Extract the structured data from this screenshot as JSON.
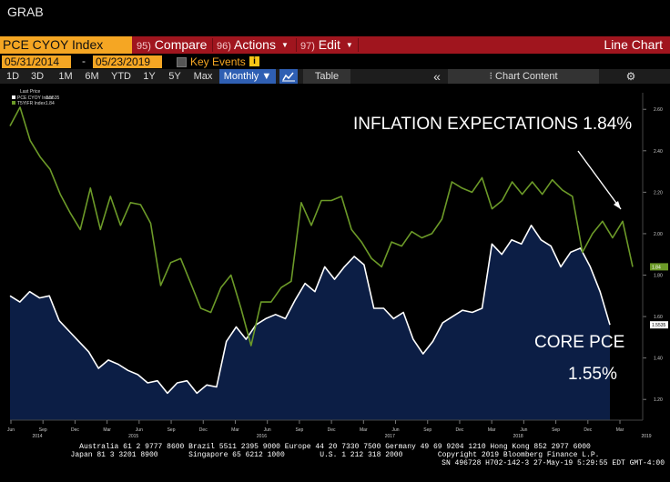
{
  "window": {
    "title": "GRAB"
  },
  "toolbar": {
    "ticker": "PCE CYOY Index",
    "menus": [
      {
        "num": "95)",
        "label": "Compare"
      },
      {
        "num": "96)",
        "label": "Actions"
      },
      {
        "num": "97)",
        "label": "Edit"
      }
    ],
    "chart_type": "Line Chart"
  },
  "dates": {
    "start": "05/31/2014",
    "dash": "-",
    "end": "05/23/2019",
    "key_events": "Key Events",
    "info": "i"
  },
  "periods": [
    "1D",
    "3D",
    "1M",
    "6M",
    "YTD",
    "1Y",
    "5Y",
    "Max"
  ],
  "frequency": "Monthly",
  "table_label": "Table",
  "collapse_glyph": "«",
  "chart_content": "Chart Content",
  "settings_glyph": "⚙",
  "colors": {
    "pce": "#ffffff",
    "tsy": "#6c9a28",
    "fill": "#0c1e45",
    "toolbar_red": "#a0151e",
    "ticker_orange": "#f5a623"
  },
  "chart_data": {
    "type": "line",
    "legend": {
      "title": "Last Price",
      "entries": [
        {
          "name": "PCE CYOY Index",
          "value": "1.5535"
        },
        {
          "name": "T5YIFR Index",
          "value": "1.84"
        }
      ]
    },
    "x_ticks": [
      {
        "label": "Jun",
        "year": "2014"
      },
      {
        "label": "Sep",
        "year": ""
      },
      {
        "label": "Dec",
        "year": ""
      },
      {
        "label": "Mar",
        "year": "2015"
      },
      {
        "label": "Jun",
        "year": ""
      },
      {
        "label": "Sep",
        "year": ""
      },
      {
        "label": "Dec",
        "year": ""
      },
      {
        "label": "Mar",
        "year": "2016"
      },
      {
        "label": "Jun",
        "year": ""
      },
      {
        "label": "Sep",
        "year": ""
      },
      {
        "label": "Dec",
        "year": ""
      },
      {
        "label": "Mar",
        "year": "2017"
      },
      {
        "label": "Jun",
        "year": ""
      },
      {
        "label": "Sep",
        "year": ""
      },
      {
        "label": "Dec",
        "year": ""
      },
      {
        "label": "Mar",
        "year": "2018"
      },
      {
        "label": "Jun",
        "year": ""
      },
      {
        "label": "Sep",
        "year": ""
      },
      {
        "label": "Dec",
        "year": ""
      },
      {
        "label": "Mar",
        "year": "2019"
      }
    ],
    "y_ticks": [
      "2.60",
      "2.40",
      "2.20",
      "2.00",
      "1.80",
      "1.60",
      "1.40",
      "1.20"
    ],
    "ylim": [
      1.1,
      2.68
    ],
    "series": [
      {
        "name": "PCE CYOY Index",
        "last": "1.5535",
        "values": [
          1.7,
          1.67,
          1.72,
          1.69,
          1.7,
          1.58,
          1.53,
          1.48,
          1.43,
          1.35,
          1.39,
          1.37,
          1.34,
          1.32,
          1.28,
          1.29,
          1.23,
          1.28,
          1.29,
          1.23,
          1.27,
          1.26,
          1.48,
          1.55,
          1.49,
          1.56,
          1.59,
          1.61,
          1.59,
          1.68,
          1.76,
          1.72,
          1.84,
          1.78,
          1.84,
          1.89,
          1.85,
          1.64,
          1.64,
          1.59,
          1.62,
          1.49,
          1.42,
          1.48,
          1.57,
          1.6,
          1.63,
          1.62,
          1.64,
          1.95,
          1.9,
          1.97,
          1.95,
          2.04,
          1.97,
          1.94,
          1.84,
          1.91,
          1.93,
          1.84,
          1.72,
          1.56
        ]
      },
      {
        "name": "T5YIFR Index",
        "last": "1.84",
        "values": [
          2.52,
          2.61,
          2.45,
          2.37,
          2.31,
          2.19,
          2.1,
          2.02,
          2.22,
          2.02,
          2.18,
          2.04,
          2.15,
          2.14,
          2.05,
          1.75,
          1.86,
          1.88,
          1.76,
          1.64,
          1.62,
          1.74,
          1.8,
          1.64,
          1.46,
          1.67,
          1.67,
          1.74,
          1.77,
          2.15,
          2.04,
          2.16,
          2.16,
          2.18,
          2.02,
          1.96,
          1.88,
          1.84,
          1.96,
          1.94,
          2.01,
          1.98,
          2.0,
          2.07,
          2.25,
          2.22,
          2.2,
          2.27,
          2.12,
          2.16,
          2.25,
          2.19,
          2.25,
          2.19,
          2.26,
          2.21,
          2.18,
          1.91,
          2.0,
          2.06,
          1.98,
          2.06,
          1.84
        ]
      }
    ],
    "annotations": [
      {
        "text": "INFLATION EXPECTATIONS 1.84%"
      },
      {
        "text": "CORE PCE"
      },
      {
        "text": "1.55%"
      }
    ]
  },
  "footer": {
    "line1": "Australia 61 2 9777 8600 Brazil 5511 2395 9000 Europe 44 20 7330 7500 Germany 49 69 9204 1210 Hong Kong 852 2977 6000",
    "line2": "Japan 81 3 3201 8900       Singapore 65 6212 1000        U.S. 1 212 318 2000        Copyright 2019 Bloomberg Finance L.P.",
    "line3": "SN 496728 H702-142-3 27-May-19  5:29:55 EDT  GMT-4:00"
  }
}
